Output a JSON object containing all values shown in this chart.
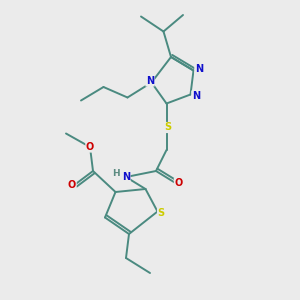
{
  "bg_color": "#ebebeb",
  "bond_color": "#4a8a80",
  "bond_width": 1.4,
  "atom_colors": {
    "N": "#1010cc",
    "S": "#cccc00",
    "O": "#cc0000",
    "C": "#4a8a80",
    "H": "#5a8a80"
  },
  "font_size": 7.0
}
